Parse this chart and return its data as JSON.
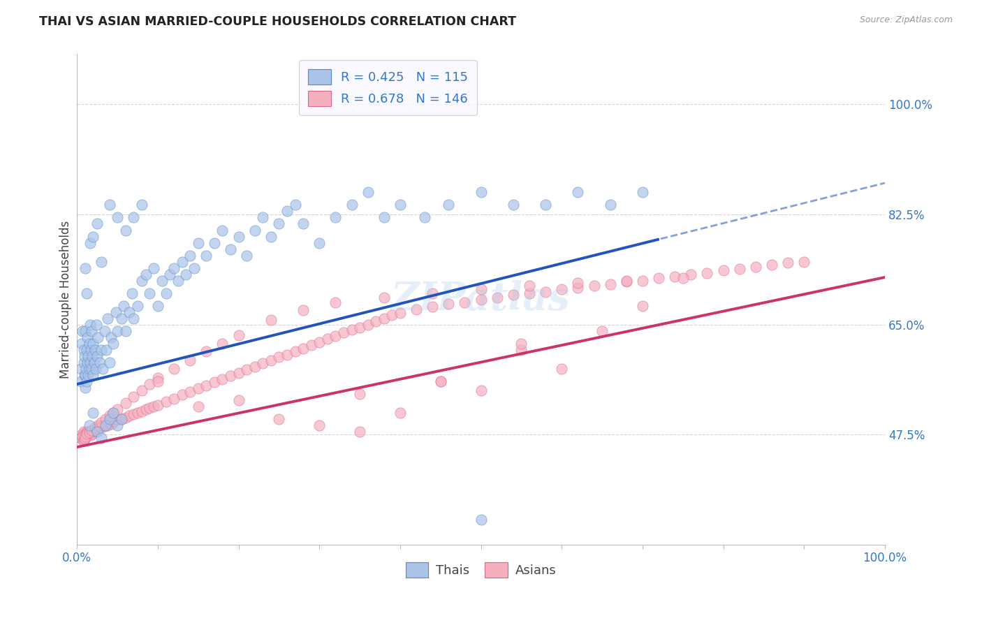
{
  "title": "THAI VS ASIAN MARRIED-COUPLE HOUSEHOLDS CORRELATION CHART",
  "source": "Source: ZipAtlas.com",
  "ylabel": "Married-couple Households",
  "yticks": [
    "47.5%",
    "65.0%",
    "82.5%",
    "100.0%"
  ],
  "ytick_values": [
    0.475,
    0.65,
    0.825,
    1.0
  ],
  "xlim": [
    0.0,
    1.0
  ],
  "ylim": [
    0.3,
    1.08
  ],
  "thais_R": 0.425,
  "thais_N": 115,
  "asians_R": 0.678,
  "asians_N": 146,
  "thais_color": "#aac4e8",
  "thais_edge_color": "#5588cc",
  "thais_line_color": "#2255bb",
  "asians_color": "#f5b0c0",
  "asians_edge_color": "#dd6688",
  "asians_line_color": "#cc3366",
  "background_color": "#ffffff",
  "grid_color": "#cccccc",
  "title_color": "#222222",
  "source_color": "#999999",
  "axis_label_color": "#3377cc",
  "thais_line_intercept": 0.555,
  "thais_line_slope": 0.32,
  "asians_line_intercept": 0.455,
  "asians_line_slope": 0.27,
  "thais_scatter_x": [
    0.005,
    0.005,
    0.006,
    0.007,
    0.008,
    0.008,
    0.009,
    0.009,
    0.01,
    0.01,
    0.01,
    0.011,
    0.012,
    0.012,
    0.013,
    0.013,
    0.014,
    0.014,
    0.015,
    0.015,
    0.016,
    0.016,
    0.017,
    0.018,
    0.018,
    0.019,
    0.02,
    0.02,
    0.021,
    0.022,
    0.023,
    0.024,
    0.025,
    0.026,
    0.028,
    0.03,
    0.032,
    0.034,
    0.036,
    0.038,
    0.04,
    0.042,
    0.045,
    0.048,
    0.05,
    0.055,
    0.058,
    0.06,
    0.065,
    0.068,
    0.07,
    0.075,
    0.08,
    0.085,
    0.09,
    0.095,
    0.1,
    0.105,
    0.11,
    0.115,
    0.12,
    0.125,
    0.13,
    0.135,
    0.14,
    0.145,
    0.15,
    0.16,
    0.17,
    0.18,
    0.19,
    0.2,
    0.21,
    0.22,
    0.23,
    0.24,
    0.25,
    0.26,
    0.27,
    0.28,
    0.3,
    0.32,
    0.34,
    0.36,
    0.38,
    0.4,
    0.43,
    0.46,
    0.5,
    0.54,
    0.58,
    0.62,
    0.66,
    0.7,
    0.015,
    0.02,
    0.025,
    0.03,
    0.035,
    0.04,
    0.045,
    0.05,
    0.055,
    0.01,
    0.012,
    0.016,
    0.02,
    0.025,
    0.03,
    0.04,
    0.05,
    0.06,
    0.07,
    0.08,
    0.5
  ],
  "thais_scatter_y": [
    0.56,
    0.58,
    0.62,
    0.64,
    0.59,
    0.61,
    0.57,
    0.6,
    0.55,
    0.57,
    0.64,
    0.58,
    0.56,
    0.61,
    0.59,
    0.63,
    0.57,
    0.6,
    0.58,
    0.62,
    0.59,
    0.65,
    0.61,
    0.58,
    0.64,
    0.6,
    0.57,
    0.62,
    0.59,
    0.61,
    0.58,
    0.65,
    0.6,
    0.63,
    0.59,
    0.61,
    0.58,
    0.64,
    0.61,
    0.66,
    0.59,
    0.63,
    0.62,
    0.67,
    0.64,
    0.66,
    0.68,
    0.64,
    0.67,
    0.7,
    0.66,
    0.68,
    0.72,
    0.73,
    0.7,
    0.74,
    0.68,
    0.72,
    0.7,
    0.73,
    0.74,
    0.72,
    0.75,
    0.73,
    0.76,
    0.74,
    0.78,
    0.76,
    0.78,
    0.8,
    0.77,
    0.79,
    0.76,
    0.8,
    0.82,
    0.79,
    0.81,
    0.83,
    0.84,
    0.81,
    0.78,
    0.82,
    0.84,
    0.86,
    0.82,
    0.84,
    0.82,
    0.84,
    0.86,
    0.84,
    0.84,
    0.86,
    0.84,
    0.86,
    0.49,
    0.51,
    0.48,
    0.47,
    0.49,
    0.5,
    0.51,
    0.49,
    0.5,
    0.74,
    0.7,
    0.78,
    0.79,
    0.81,
    0.75,
    0.84,
    0.82,
    0.8,
    0.82,
    0.84,
    0.34
  ],
  "asians_scatter_x": [
    0.005,
    0.006,
    0.007,
    0.008,
    0.009,
    0.01,
    0.011,
    0.012,
    0.013,
    0.014,
    0.015,
    0.016,
    0.017,
    0.018,
    0.019,
    0.02,
    0.022,
    0.024,
    0.026,
    0.028,
    0.03,
    0.032,
    0.034,
    0.036,
    0.038,
    0.04,
    0.043,
    0.046,
    0.05,
    0.055,
    0.06,
    0.065,
    0.07,
    0.075,
    0.08,
    0.085,
    0.09,
    0.095,
    0.1,
    0.11,
    0.12,
    0.13,
    0.14,
    0.15,
    0.16,
    0.17,
    0.18,
    0.19,
    0.2,
    0.21,
    0.22,
    0.23,
    0.24,
    0.25,
    0.26,
    0.27,
    0.28,
    0.29,
    0.3,
    0.31,
    0.32,
    0.33,
    0.34,
    0.35,
    0.36,
    0.37,
    0.38,
    0.39,
    0.4,
    0.42,
    0.44,
    0.46,
    0.48,
    0.5,
    0.52,
    0.54,
    0.56,
    0.58,
    0.6,
    0.62,
    0.64,
    0.66,
    0.68,
    0.7,
    0.72,
    0.74,
    0.76,
    0.78,
    0.8,
    0.82,
    0.84,
    0.86,
    0.88,
    0.9,
    0.005,
    0.006,
    0.007,
    0.008,
    0.009,
    0.01,
    0.012,
    0.015,
    0.018,
    0.022,
    0.026,
    0.03,
    0.035,
    0.04,
    0.045,
    0.05,
    0.06,
    0.07,
    0.08,
    0.09,
    0.1,
    0.12,
    0.14,
    0.16,
    0.18,
    0.2,
    0.24,
    0.28,
    0.32,
    0.38,
    0.44,
    0.5,
    0.56,
    0.62,
    0.68,
    0.75,
    0.4,
    0.3,
    0.5,
    0.2,
    0.6,
    0.45,
    0.35,
    0.55,
    0.25,
    0.65,
    0.35,
    0.45,
    0.55,
    0.15,
    0.7,
    0.1
  ],
  "asians_scatter_y": [
    0.47,
    0.475,
    0.472,
    0.48,
    0.468,
    0.475,
    0.478,
    0.472,
    0.48,
    0.476,
    0.478,
    0.48,
    0.474,
    0.482,
    0.476,
    0.48,
    0.482,
    0.485,
    0.483,
    0.487,
    0.486,
    0.49,
    0.488,
    0.492,
    0.489,
    0.493,
    0.492,
    0.496,
    0.498,
    0.5,
    0.502,
    0.505,
    0.507,
    0.51,
    0.512,
    0.515,
    0.517,
    0.52,
    0.522,
    0.527,
    0.532,
    0.538,
    0.543,
    0.548,
    0.553,
    0.558,
    0.563,
    0.568,
    0.573,
    0.578,
    0.583,
    0.588,
    0.593,
    0.598,
    0.602,
    0.607,
    0.612,
    0.617,
    0.622,
    0.627,
    0.632,
    0.637,
    0.642,
    0.645,
    0.65,
    0.655,
    0.66,
    0.665,
    0.668,
    0.674,
    0.678,
    0.683,
    0.685,
    0.69,
    0.693,
    0.697,
    0.7,
    0.702,
    0.706,
    0.708,
    0.712,
    0.714,
    0.718,
    0.72,
    0.724,
    0.726,
    0.73,
    0.732,
    0.736,
    0.738,
    0.742,
    0.745,
    0.748,
    0.75,
    0.47,
    0.468,
    0.472,
    0.465,
    0.468,
    0.472,
    0.476,
    0.478,
    0.482,
    0.486,
    0.49,
    0.494,
    0.5,
    0.505,
    0.51,
    0.515,
    0.525,
    0.535,
    0.545,
    0.555,
    0.565,
    0.58,
    0.593,
    0.607,
    0.62,
    0.633,
    0.657,
    0.673,
    0.685,
    0.693,
    0.7,
    0.706,
    0.712,
    0.716,
    0.72,
    0.724,
    0.51,
    0.49,
    0.545,
    0.53,
    0.58,
    0.56,
    0.54,
    0.61,
    0.5,
    0.64,
    0.48,
    0.56,
    0.62,
    0.52,
    0.68,
    0.56
  ]
}
